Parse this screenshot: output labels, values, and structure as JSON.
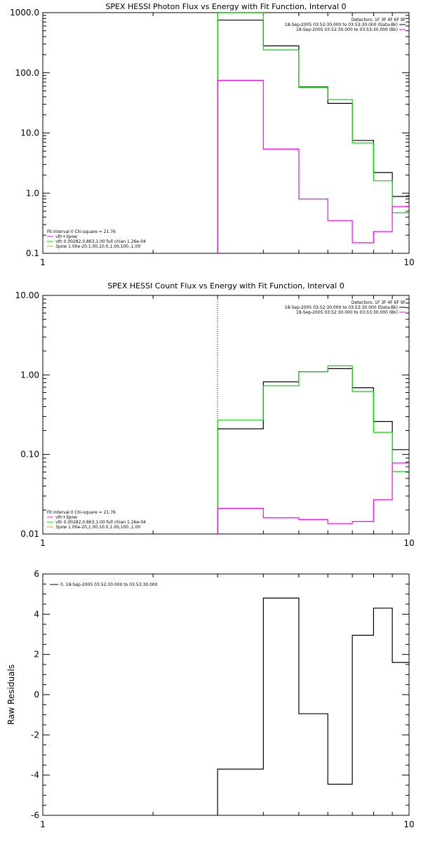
{
  "chart_data": [
    {
      "type": "line",
      "title": "SPEX HESSI Photon Flux vs Energy with Fit Function, Interval 0",
      "xlabel": "",
      "ylabel": "",
      "xscale": "log",
      "yscale": "log",
      "xlim": [
        1,
        10
      ],
      "ylim": [
        0.1,
        1000
      ],
      "xticks": [
        {
          "v": 1,
          "label": "1"
        },
        {
          "v": 10,
          "label": "10"
        }
      ],
      "yticks": [
        {
          "v": 0.1,
          "label": "0.1"
        },
        {
          "v": 1,
          "label": "1.0"
        },
        {
          "v": 10,
          "label": "10.0"
        },
        {
          "v": 100,
          "label": "100.0"
        },
        {
          "v": 1000,
          "label": "1000.0"
        }
      ],
      "vline": 3,
      "bin_edges": [
        3,
        4,
        5,
        6,
        7,
        8,
        9,
        10
      ],
      "series": [
        {
          "color": "#000000",
          "values": [
            750,
            280,
            58,
            31,
            7.5,
            2.2,
            0.88
          ]
        },
        {
          "color": "#00dd00",
          "values": [
            1000,
            240,
            57,
            36,
            6.8,
            1.6,
            0.47
          ]
        },
        {
          "color": "#ff00ff",
          "values": [
            75,
            5.4,
            0.8,
            0.35,
            0.15,
            0.23,
            0.6
          ]
        }
      ],
      "legend_top_right": [
        {
          "text": "Detectors: 1F 3F 4F 6F 9F",
          "color": null
        },
        {
          "text": "18-Sep-2005 03:52:30.000 to 03:53:30.000 (Data-Bk)",
          "color": "#000000"
        },
        {
          "text": "18-Sep-2005 03:52:30.000 to 03:53:30.000 (Bk)",
          "color": "#ff00ff"
        }
      ],
      "legend_bottom_left": [
        {
          "text": "Fit Interval 0   Chi-square = 21.76",
          "color": null
        },
        {
          "text": "vth+3pow",
          "color": "#ff00ff"
        },
        {
          "text": "vth 0.00282,0.863,1.00  full chian 1.26e-04",
          "color": "#00dd00"
        },
        {
          "text": "3pow 1.00e-20,1.00,10.0,1.00,100.,1.00",
          "color": "#d0a000"
        }
      ]
    },
    {
      "type": "line",
      "title": "SPEX HESSI Count Flux vs Energy with Fit Function, Interval 0",
      "xlabel": "",
      "ylabel": "",
      "xscale": "log",
      "yscale": "log",
      "xlim": [
        1,
        10
      ],
      "ylim": [
        0.01,
        10
      ],
      "xticks": [
        {
          "v": 1,
          "label": "1"
        },
        {
          "v": 10,
          "label": "10"
        }
      ],
      "yticks": [
        {
          "v": 0.01,
          "label": "0.01"
        },
        {
          "v": 0.1,
          "label": "0.10"
        },
        {
          "v": 1,
          "label": "1.00"
        },
        {
          "v": 10,
          "label": "10.00"
        }
      ],
      "vline": 3,
      "bin_edges": [
        3,
        4,
        5,
        6,
        7,
        8,
        9,
        10
      ],
      "series": [
        {
          "color": "#000000",
          "values": [
            0.21,
            0.82,
            1.1,
            1.2,
            0.69,
            0.26,
            0.115
          ]
        },
        {
          "color": "#00dd00",
          "values": [
            0.27,
            0.73,
            1.1,
            1.3,
            0.62,
            0.19,
            0.061
          ]
        },
        {
          "color": "#ff00ff",
          "values": [
            0.021,
            0.016,
            0.0152,
            0.0135,
            0.0143,
            0.027,
            0.078
          ]
        }
      ],
      "legend_top_right": [
        {
          "text": "Detectors: 1F 3F 4F 6F 9F",
          "color": null
        },
        {
          "text": "18-Sep-2005 03:52:30.000 to 03:53:30.000 (Data-Bk)",
          "color": "#000000"
        },
        {
          "text": "18-Sep-2005 03:52:30.000 to 03:53:30.000 (Bk)",
          "color": "#ff00ff"
        }
      ],
      "legend_bottom_left": [
        {
          "text": "Fit Interval 0   Chi-square = 21.76",
          "color": null
        },
        {
          "text": "vth+3pow",
          "color": "#ff00ff"
        },
        {
          "text": "vth 0.00282,0.863,1.00  full chian 1.26e-04",
          "color": "#00dd00"
        },
        {
          "text": "3pow 1.00e-20,1.00,10.0,1.00,100.,1.00",
          "color": "#d0a000"
        }
      ]
    },
    {
      "type": "line",
      "title": "",
      "xlabel": "",
      "ylabel": "Raw Residuals",
      "xscale": "log",
      "yscale": "linear",
      "xlim": [
        1,
        10
      ],
      "ylim": [
        -6,
        6
      ],
      "xticks": [
        {
          "v": 1,
          "label": "1"
        },
        {
          "v": 10,
          "label": "10"
        }
      ],
      "yticks": [
        {
          "v": -6,
          "label": "-6"
        },
        {
          "v": -4,
          "label": "-4"
        },
        {
          "v": -2,
          "label": "-2"
        },
        {
          "v": 0,
          "label": "0"
        },
        {
          "v": 2,
          "label": "2"
        },
        {
          "v": 4,
          "label": "4"
        },
        {
          "v": 6,
          "label": "6"
        }
      ],
      "vline": null,
      "bin_edges": [
        3,
        4,
        5,
        6,
        7,
        8,
        9,
        10
      ],
      "series": [
        {
          "color": "#000000",
          "values": [
            -3.7,
            4.8,
            -0.95,
            -4.45,
            2.95,
            4.3,
            1.6
          ]
        }
      ],
      "legend_top_left": [
        {
          "text": "0. 18-Sep-2005 03:52:30.000 to 03:53:30.000",
          "color": "#000000"
        }
      ]
    }
  ]
}
